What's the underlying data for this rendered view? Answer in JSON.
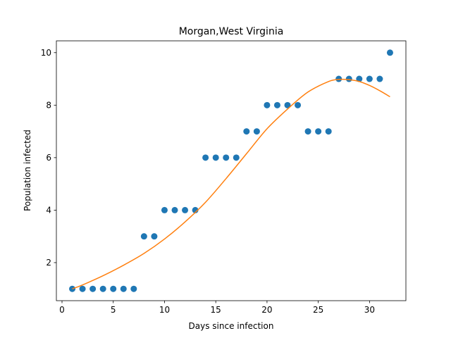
{
  "chart_data": {
    "type": "scatter",
    "title": "Morgan,West Virginia",
    "xlabel": "Days since infection",
    "ylabel": "Population infected",
    "xlim": [
      -0.55,
      33.55
    ],
    "ylim": [
      0.55,
      10.45
    ],
    "xticks": [
      0,
      5,
      10,
      15,
      20,
      25,
      30
    ],
    "yticks": [
      2,
      4,
      6,
      8,
      10
    ],
    "grid": false,
    "series": [
      {
        "kind": "scatter",
        "color": "#1f77b4",
        "x": [
          1,
          2,
          3,
          4,
          5,
          6,
          7,
          8,
          9,
          10,
          11,
          12,
          13,
          14,
          15,
          16,
          17,
          18,
          19,
          20,
          21,
          22,
          23,
          24,
          25,
          26,
          27,
          28,
          29,
          30,
          31,
          32
        ],
        "y": [
          1,
          1,
          1,
          1,
          1,
          1,
          1,
          3,
          3,
          4,
          4,
          4,
          4,
          6,
          6,
          6,
          6,
          7,
          7,
          8,
          8,
          8,
          8,
          7,
          7,
          7,
          9,
          9,
          9,
          9,
          9,
          10
        ]
      },
      {
        "kind": "line",
        "color": "#ff7f0e",
        "x": [
          1,
          2,
          4,
          6,
          8,
          10,
          12,
          14,
          16,
          18,
          20,
          22,
          24,
          26,
          27,
          28,
          29,
          30,
          31,
          32
        ],
        "y": [
          1.0,
          1.15,
          1.5,
          1.9,
          2.35,
          2.9,
          3.55,
          4.3,
          5.2,
          6.15,
          7.1,
          7.85,
          8.5,
          8.9,
          8.98,
          8.97,
          8.9,
          8.75,
          8.55,
          8.32
        ]
      }
    ]
  }
}
